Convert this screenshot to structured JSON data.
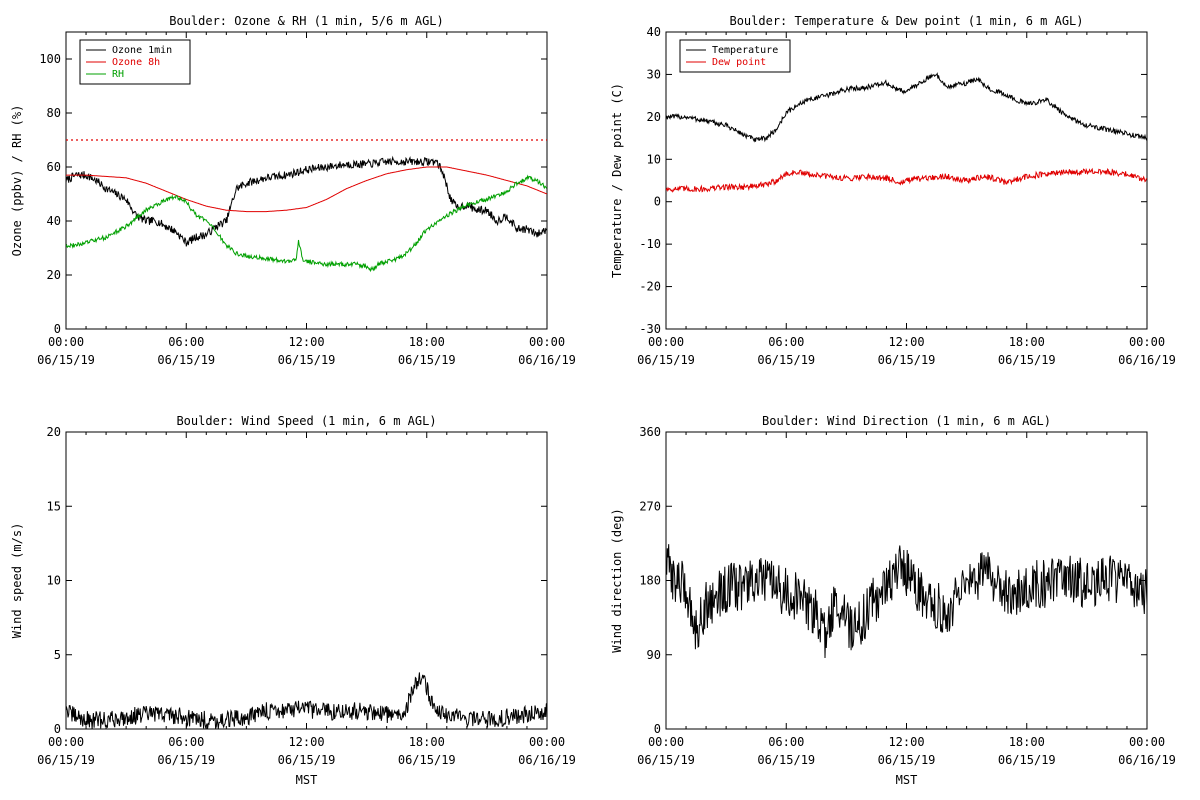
{
  "colors": {
    "black": "#000000",
    "red": "#e00000",
    "green": "#00a000",
    "background": "#ffffff"
  },
  "chart_data": [
    {
      "type": "line",
      "title": "Boulder: Ozone & RH (1 min, 5/6 m AGL)",
      "ylabel": "Ozone (ppbv) / RH (%)",
      "xlabel": "",
      "xlim": [
        0,
        24
      ],
      "ylim": [
        0,
        110
      ],
      "yticks": [
        0,
        20,
        40,
        60,
        80,
        100
      ],
      "xticks": [
        {
          "x": 0,
          "time": "00:00",
          "date": "06/15/19"
        },
        {
          "x": 6,
          "time": "06:00",
          "date": "06/15/19"
        },
        {
          "x": 12,
          "time": "12:00",
          "date": "06/15/19"
        },
        {
          "x": 18,
          "time": "18:00",
          "date": "06/15/19"
        },
        {
          "x": 24,
          "time": "00:00",
          "date": "06/16/19"
        }
      ],
      "legend": {
        "placement": "top-left"
      },
      "reference_line": {
        "y": 70,
        "color": "#e00000",
        "style": "dotted"
      },
      "series": [
        {
          "name": "Ozone 1min",
          "color": "#000000",
          "noise": 1.5,
          "x": [
            0,
            0.5,
            1,
            1.5,
            2,
            2.5,
            3,
            3.5,
            4,
            4.5,
            5,
            5.5,
            6,
            6.5,
            7,
            7.5,
            8,
            8.5,
            9,
            10,
            11,
            11.5,
            12,
            13,
            14,
            15,
            16,
            17,
            18,
            18.5,
            18.8,
            19.2,
            19.5,
            20,
            20.5,
            21,
            21.5,
            22,
            22.5,
            23,
            23.5,
            24
          ],
          "y": [
            55,
            57,
            57,
            55,
            52,
            50,
            48,
            42,
            40,
            40,
            38,
            36,
            32,
            34,
            35,
            38,
            40,
            52,
            54,
            56,
            57,
            58,
            59,
            60,
            61,
            61,
            62,
            62,
            62,
            62,
            58,
            48,
            45,
            46,
            44,
            44,
            40,
            42,
            37,
            37,
            35,
            37
          ]
        },
        {
          "name": "Ozone 8h",
          "color": "#e00000",
          "noise": 0,
          "x": [
            0,
            1,
            2,
            3,
            4,
            5,
            6,
            7,
            8,
            9,
            10,
            11,
            12,
            13,
            14,
            15,
            16,
            17,
            18,
            19,
            20,
            21,
            22,
            23,
            24
          ],
          "y": [
            57,
            57,
            56.5,
            56,
            54,
            51,
            48,
            45.5,
            44,
            43.5,
            43.5,
            44,
            45,
            48,
            52,
            55,
            57.5,
            59,
            60,
            60,
            58.5,
            57,
            55,
            53,
            50
          ]
        },
        {
          "name": "RH",
          "color": "#00a000",
          "noise": 0.8,
          "x": [
            0,
            0.5,
            1,
            2,
            3,
            4,
            4.5,
            5,
            5.5,
            6,
            6.5,
            7,
            7.5,
            8,
            8.5,
            9,
            10,
            11,
            11.5,
            11.6,
            11.8,
            12,
            13,
            14,
            14.5,
            15,
            15.3,
            15.6,
            16,
            16.5,
            17,
            17.5,
            18,
            18.5,
            19,
            19.5,
            20,
            21,
            22,
            22.5,
            23,
            23.5,
            24
          ],
          "y": [
            31,
            31,
            32,
            34,
            38,
            44,
            46,
            48,
            49,
            47,
            42,
            40,
            36,
            31,
            28,
            27,
            26,
            25,
            26,
            33,
            26,
            25,
            24,
            24,
            24,
            23,
            22,
            24,
            25,
            26,
            28,
            32,
            37,
            39,
            42,
            44,
            46,
            48,
            51,
            54,
            56,
            55,
            52
          ]
        }
      ]
    },
    {
      "type": "line",
      "title": "Boulder: Temperature & Dew point (1 min, 6 m AGL)",
      "ylabel": "Temperature / Dew point (C)",
      "xlabel": "",
      "xlim": [
        0,
        24
      ],
      "ylim": [
        -30,
        40
      ],
      "yticks": [
        -30,
        -20,
        -10,
        0,
        10,
        20,
        30,
        40
      ],
      "xticks": [
        {
          "x": 0,
          "time": "00:00",
          "date": "06/15/19"
        },
        {
          "x": 6,
          "time": "06:00",
          "date": "06/15/19"
        },
        {
          "x": 12,
          "time": "12:00",
          "date": "06/15/19"
        },
        {
          "x": 18,
          "time": "18:00",
          "date": "06/15/19"
        },
        {
          "x": 24,
          "time": "00:00",
          "date": "06/16/19"
        }
      ],
      "legend": {
        "placement": "top-left"
      },
      "series": [
        {
          "name": "Temperature",
          "color": "#000000",
          "noise": 0.6,
          "x": [
            0,
            1,
            2,
            3,
            4,
            4.5,
            5,
            5.5,
            6,
            7,
            8,
            9,
            10,
            11,
            11.5,
            12,
            13,
            13.5,
            14,
            15,
            15.5,
            16,
            17,
            18,
            19,
            20,
            21,
            22,
            23,
            24
          ],
          "y": [
            20,
            20,
            19,
            18,
            15.5,
            14.5,
            15,
            17,
            21,
            24,
            25,
            26.5,
            27,
            28,
            26.5,
            26,
            29,
            30,
            27,
            28,
            29,
            27,
            25,
            23,
            24,
            20,
            18,
            17,
            16,
            15
          ]
        },
        {
          "name": "Dew point",
          "color": "#e00000",
          "noise": 0.7,
          "x": [
            0,
            1,
            2,
            3,
            4,
            5,
            5.5,
            6,
            6.5,
            7,
            8,
            9,
            10,
            11,
            11.8,
            12,
            13,
            14,
            15,
            16,
            17,
            18,
            19,
            20,
            21,
            22,
            23,
            24
          ],
          "y": [
            3,
            3,
            3,
            3.5,
            3.5,
            4,
            5,
            6.5,
            7,
            6.5,
            6,
            5.5,
            6,
            5.5,
            4.5,
            5,
            5.5,
            6,
            5,
            6,
            4.5,
            6,
            6.5,
            7,
            7,
            7,
            6.5,
            5
          ]
        }
      ]
    },
    {
      "type": "line",
      "title": "Boulder: Wind Speed (1 min, 6 m AGL)",
      "ylabel": "Wind speed (m/s)",
      "xlabel": "MST",
      "xlim": [
        0,
        24
      ],
      "ylim": [
        0,
        20
      ],
      "yticks": [
        0,
        5,
        10,
        15,
        20
      ],
      "xticks": [
        {
          "x": 0,
          "time": "00:00",
          "date": "06/15/19"
        },
        {
          "x": 6,
          "time": "06:00",
          "date": "06/15/19"
        },
        {
          "x": 12,
          "time": "12:00",
          "date": "06/15/19"
        },
        {
          "x": 18,
          "time": "18:00",
          "date": "06/15/19"
        },
        {
          "x": 24,
          "time": "00:00",
          "date": "06/16/19"
        }
      ],
      "series": [
        {
          "name": "",
          "color": "#000000",
          "noise": 0.6,
          "floor": 0,
          "x": [
            0,
            0.2,
            1,
            2,
            3,
            4,
            5,
            6,
            7,
            8,
            9,
            10,
            11,
            12,
            13,
            14,
            15,
            16,
            16.5,
            17,
            17.5,
            17.8,
            18,
            18.5,
            19,
            20,
            21,
            22,
            23,
            24
          ],
          "y": [
            1.5,
            1.0,
            0.6,
            0.6,
            0.8,
            1.0,
            1.0,
            0.8,
            0.6,
            0.6,
            0.8,
            1.2,
            1.3,
            1.3,
            1.2,
            1.2,
            1.2,
            1.0,
            0.8,
            1.5,
            3.2,
            3.6,
            2.8,
            1.0,
            1.0,
            0.7,
            0.6,
            0.8,
            1.0,
            1.2
          ]
        }
      ]
    },
    {
      "type": "line",
      "title": "Boulder: Wind Direction (1 min, 6 m AGL)",
      "ylabel": "Wind direction (deg)",
      "xlabel": "MST",
      "xlim": [
        0,
        24
      ],
      "ylim": [
        0,
        360
      ],
      "yticks": [
        0,
        90,
        180,
        270,
        360
      ],
      "xticks": [
        {
          "x": 0,
          "time": "00:00",
          "date": "06/15/19"
        },
        {
          "x": 6,
          "time": "06:00",
          "date": "06/15/19"
        },
        {
          "x": 12,
          "time": "12:00",
          "date": "06/15/19"
        },
        {
          "x": 18,
          "time": "18:00",
          "date": "06/15/19"
        },
        {
          "x": 24,
          "time": "00:00",
          "date": "06/16/19"
        }
      ],
      "series": [
        {
          "name": "",
          "color": "#000000",
          "noise": 30,
          "floor": 0,
          "ceil": 360,
          "x": [
            0,
            0.5,
            1,
            1.5,
            2,
            2.5,
            3,
            4,
            5,
            5.5,
            6,
            6.5,
            7,
            7.5,
            8,
            8.5,
            9,
            9.5,
            10,
            10.5,
            11,
            11.5,
            12,
            12.5,
            13,
            13.5,
            14,
            14.5,
            15,
            15.5,
            16,
            16.5,
            17,
            17.5,
            18,
            18.5,
            19,
            19.5,
            20,
            20.5,
            21,
            21.5,
            22,
            22.5,
            23,
            23.5,
            24
          ],
          "y": [
            200,
            180,
            170,
            120,
            150,
            160,
            170,
            175,
            180,
            170,
            165,
            160,
            150,
            140,
            110,
            160,
            130,
            120,
            140,
            160,
            170,
            200,
            190,
            170,
            160,
            150,
            140,
            160,
            170,
            180,
            190,
            180,
            170,
            165,
            170,
            175,
            175,
            180,
            185,
            180,
            175,
            180,
            185,
            180,
            175,
            170,
            165
          ]
        }
      ]
    }
  ]
}
